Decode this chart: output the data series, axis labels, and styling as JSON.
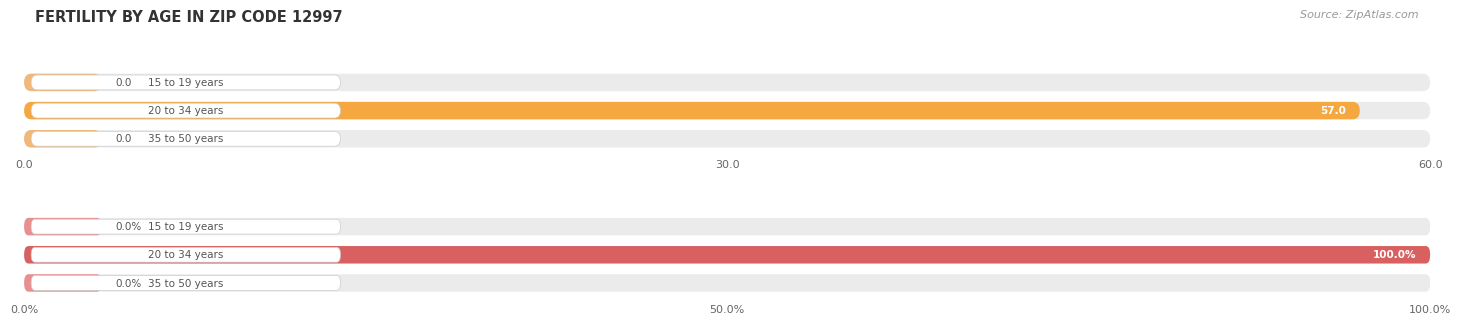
{
  "title": "FERTILITY BY AGE IN ZIP CODE 12997",
  "source": "Source: ZipAtlas.com",
  "top_chart": {
    "categories": [
      "15 to 19 years",
      "20 to 34 years",
      "35 to 50 years"
    ],
    "values": [
      0.0,
      57.0,
      0.0
    ],
    "bar_colors": [
      "#f0b87a",
      "#f5a840",
      "#f0b87a"
    ],
    "bg_color": "#e8e8e8",
    "value_labels": [
      "0.0",
      "57.0",
      "0.0"
    ],
    "xlim_max": 60.0,
    "xticks": [
      0.0,
      30.0,
      60.0
    ],
    "xtick_labels": [
      "0.0",
      "30.0",
      "60.0"
    ]
  },
  "bottom_chart": {
    "categories": [
      "15 to 19 years",
      "20 to 34 years",
      "35 to 50 years"
    ],
    "values": [
      0.0,
      100.0,
      0.0
    ],
    "bar_colors": [
      "#e89090",
      "#d96060",
      "#e89090"
    ],
    "bg_color": "#e8e8e8",
    "value_labels": [
      "0.0%",
      "100.0%",
      "0.0%"
    ],
    "xlim_max": 100.0,
    "xticks": [
      0.0,
      50.0,
      100.0
    ],
    "xtick_labels": [
      "0.0%",
      "50.0%",
      "100.0%"
    ]
  },
  "fig_bg": "#ffffff",
  "row_bg": "#f0f0f0",
  "label_bg": "#ffffff",
  "label_color": "#555555",
  "title_color": "#333333",
  "source_color": "#999999",
  "value_color_inside": "#ffffff",
  "value_color_outside": "#555555"
}
